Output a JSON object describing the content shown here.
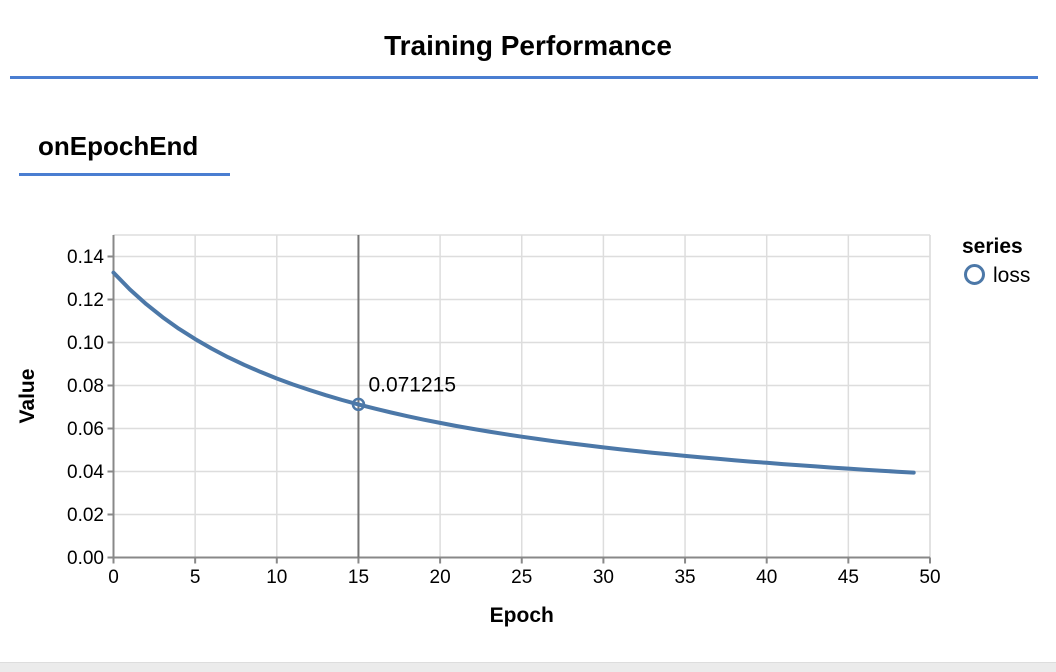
{
  "page": {
    "title": "Training Performance",
    "section_title": "onEpochEnd"
  },
  "colors": {
    "accent_rule": "#4a7ed1",
    "series_line": "#4c78a8",
    "grid": "#dddddd",
    "axis": "#888888",
    "crosshair": "#757575",
    "text": "#000000",
    "footer_strip": "#ebebeb"
  },
  "chart_data": {
    "type": "line",
    "title": "",
    "xlabel": "Epoch",
    "ylabel": "Value",
    "xlim": [
      0,
      50
    ],
    "ylim": [
      0,
      0.15
    ],
    "grid": true,
    "x_ticks": {
      "values": [
        0,
        5,
        10,
        15,
        20,
        25,
        30,
        35,
        40,
        45,
        50
      ],
      "labels": [
        "0",
        "5",
        "10",
        "15",
        "20",
        "25",
        "30",
        "35",
        "40",
        "45",
        "50"
      ]
    },
    "y_ticks": {
      "values": [
        0.0,
        0.02,
        0.04,
        0.06,
        0.08,
        0.1,
        0.12,
        0.14
      ],
      "labels": [
        "0.00",
        "0.02",
        "0.04",
        "0.06",
        "0.08",
        "0.10",
        "0.12",
        "0.14"
      ]
    },
    "legend": {
      "title": "series",
      "position": "right",
      "entries": [
        {
          "label": "loss",
          "color": "#4c78a8",
          "symbol": "circle"
        }
      ]
    },
    "series": [
      {
        "name": "loss",
        "color": "#4c78a8",
        "x": [
          0,
          1,
          2,
          3,
          4,
          5,
          6,
          7,
          8,
          9,
          10,
          11,
          12,
          13,
          14,
          15,
          16,
          17,
          18,
          19,
          20,
          21,
          22,
          23,
          24,
          25,
          26,
          27,
          28,
          29,
          30,
          31,
          32,
          33,
          34,
          35,
          36,
          37,
          38,
          39,
          40,
          41,
          42,
          43,
          44,
          45,
          46,
          47,
          48,
          49
        ],
        "values": [
          0.13249,
          0.124707,
          0.117868,
          0.111811,
          0.10641,
          0.101563,
          0.09719,
          0.093225,
          0.089611,
          0.086306,
          0.083271,
          0.080474,
          0.077888,
          0.07549,
          0.073261,
          0.071215,
          0.069241,
          0.067422,
          0.065716,
          0.064111,
          0.0626,
          0.061174,
          0.059826,
          0.05855,
          0.05734,
          0.056192,
          0.0551,
          0.054061,
          0.053071,
          0.052127,
          0.051224,
          0.050362,
          0.049537,
          0.048746,
          0.047988,
          0.047261,
          0.046562,
          0.045891,
          0.045245,
          0.044623,
          0.044024,
          0.043447,
          0.04289,
          0.042353,
          0.041834,
          0.041332,
          0.040847,
          0.040378,
          0.039924,
          0.039484
        ]
      }
    ],
    "highlight": {
      "series": "loss",
      "x": 15,
      "value": 0.071215,
      "label": "0.071215"
    }
  }
}
